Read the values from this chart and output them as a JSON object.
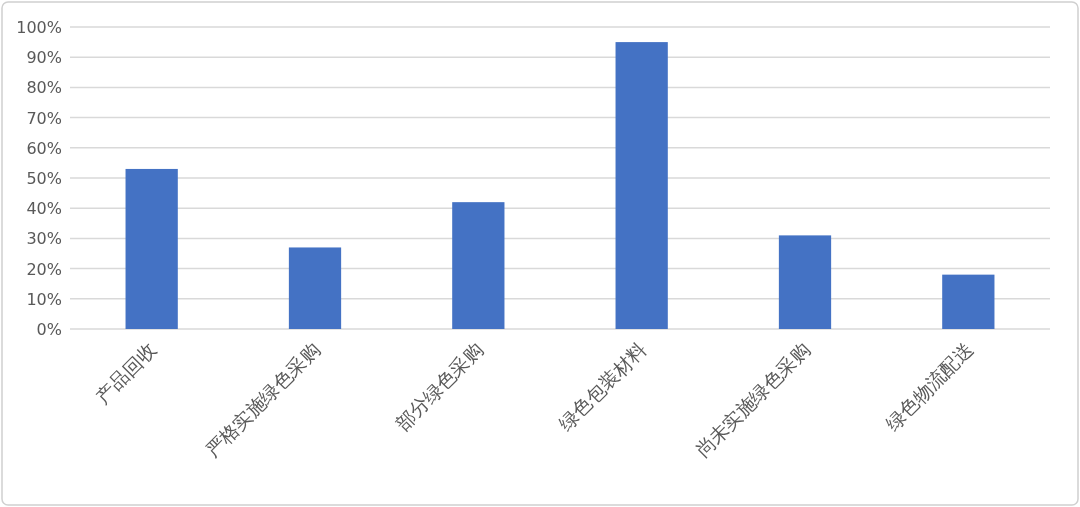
{
  "chart_data": {
    "type": "bar",
    "categories": [
      "产品回收",
      "严格实施绿色采购",
      "部分绿色采购",
      "绿色包装材料",
      "尚未实施绿色采购",
      "绿色物流配送"
    ],
    "values": [
      53,
      27,
      42,
      95,
      31,
      18
    ],
    "color": "#4472c4",
    "ylim": [
      0,
      100
    ],
    "yticks": [
      {
        "value": 0,
        "label": "0%"
      },
      {
        "value": 10,
        "label": "10%"
      },
      {
        "value": 20,
        "label": "20%"
      },
      {
        "value": 30,
        "label": "30%"
      },
      {
        "value": 40,
        "label": "40%"
      },
      {
        "value": 50,
        "label": "50%"
      },
      {
        "value": 60,
        "label": "60%"
      },
      {
        "value": 70,
        "label": "70%"
      },
      {
        "value": 80,
        "label": "80%"
      },
      {
        "value": 90,
        "label": "90%"
      },
      {
        "value": 100,
        "label": "100%"
      }
    ],
    "grid": "y"
  }
}
